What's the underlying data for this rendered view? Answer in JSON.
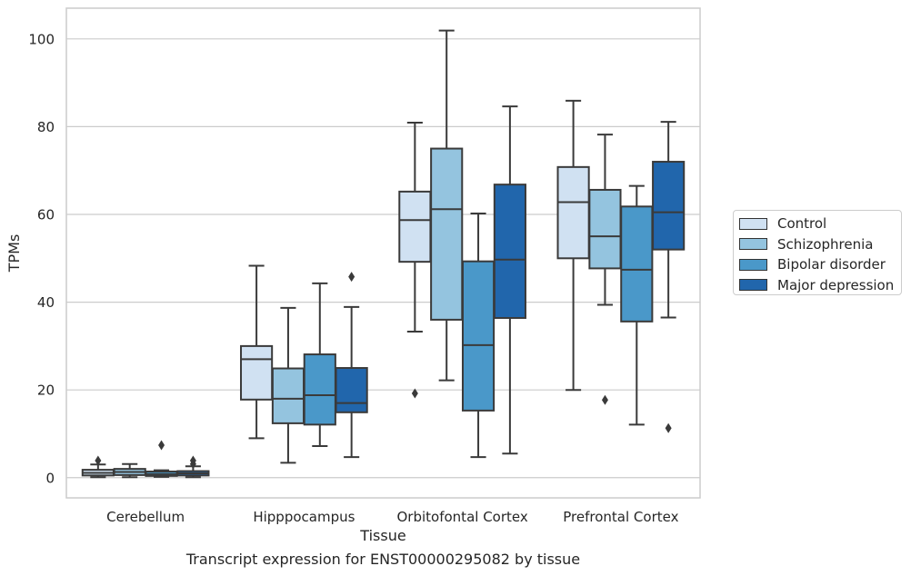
{
  "caption": "Transcript expression for ENST00000295082 by tissue",
  "chart_data": {
    "type": "boxplot",
    "xlabel": "Tissue",
    "ylabel": "TPMs",
    "ylim": [
      -4.6,
      107
    ],
    "yticks": [
      0,
      20,
      40,
      60,
      80,
      100
    ],
    "grid": "horizontal",
    "legend_position": "right",
    "categories": [
      "Cerebellum",
      "Hipppocampus",
      "Orbitofontal Cortex",
      "Prefrontal Cortex"
    ],
    "series": [
      {
        "name": "Control",
        "color": "#d0e1f2",
        "boxes": [
          {
            "whisker_low": 0.1,
            "q1": 0.5,
            "median": 1.1,
            "q3": 1.8,
            "whisker_high": 3.0,
            "outliers": [
              3.9
            ]
          },
          {
            "whisker_low": 9.0,
            "q1": 17.8,
            "median": 27.0,
            "q3": 30.0,
            "whisker_high": 48.3,
            "outliers": []
          },
          {
            "whisker_low": 33.3,
            "q1": 49.2,
            "median": 58.7,
            "q3": 65.2,
            "whisker_high": 80.9,
            "outliers": [
              19.2
            ]
          },
          {
            "whisker_low": 20.0,
            "q1": 50.0,
            "median": 62.8,
            "q3": 70.8,
            "whisker_high": 85.9,
            "outliers": []
          }
        ]
      },
      {
        "name": "Schizophrenia",
        "color": "#94c4df",
        "boxes": [
          {
            "whisker_low": 0.1,
            "q1": 0.6,
            "median": 1.3,
            "q3": 2.0,
            "whisker_high": 3.1,
            "outliers": []
          },
          {
            "whisker_low": 3.4,
            "q1": 12.4,
            "median": 18.0,
            "q3": 24.9,
            "whisker_high": 38.7,
            "outliers": []
          },
          {
            "whisker_low": 22.2,
            "q1": 36.0,
            "median": 61.2,
            "q3": 75.0,
            "whisker_high": 101.9,
            "outliers": []
          },
          {
            "whisker_low": 39.4,
            "q1": 47.7,
            "median": 55.0,
            "q3": 65.6,
            "whisker_high": 78.2,
            "outliers": [
              17.7
            ]
          }
        ]
      },
      {
        "name": "Bipolar disorder",
        "color": "#4a98c9",
        "boxes": [
          {
            "whisker_low": 0.2,
            "q1": 0.4,
            "median": 0.8,
            "q3": 1.4,
            "whisker_high": 1.7,
            "outliers": [
              7.4
            ]
          },
          {
            "whisker_low": 7.2,
            "q1": 12.1,
            "median": 18.8,
            "q3": 28.1,
            "whisker_high": 44.3,
            "outliers": []
          },
          {
            "whisker_low": 4.7,
            "q1": 15.3,
            "median": 30.2,
            "q3": 49.3,
            "whisker_high": 60.2,
            "outliers": []
          },
          {
            "whisker_low": 12.1,
            "q1": 35.6,
            "median": 47.4,
            "q3": 61.8,
            "whisker_high": 66.5,
            "outliers": []
          }
        ]
      },
      {
        "name": "Major depression",
        "color": "#2166ac",
        "boxes": [
          {
            "whisker_low": 0.1,
            "q1": 0.5,
            "median": 1.0,
            "q3": 1.5,
            "whisker_high": 2.6,
            "outliers": [
              3.9,
              3.1
            ]
          },
          {
            "whisker_low": 4.7,
            "q1": 14.9,
            "median": 17.0,
            "q3": 25.0,
            "whisker_high": 38.9,
            "outliers": [
              45.8
            ]
          },
          {
            "whisker_low": 5.5,
            "q1": 36.4,
            "median": 49.7,
            "q3": 66.8,
            "whisker_high": 84.6,
            "outliers": []
          },
          {
            "whisker_low": 36.5,
            "q1": 52.0,
            "median": 60.5,
            "q3": 72.0,
            "whisker_high": 81.1,
            "outliers": [
              11.3
            ]
          }
        ]
      }
    ]
  }
}
